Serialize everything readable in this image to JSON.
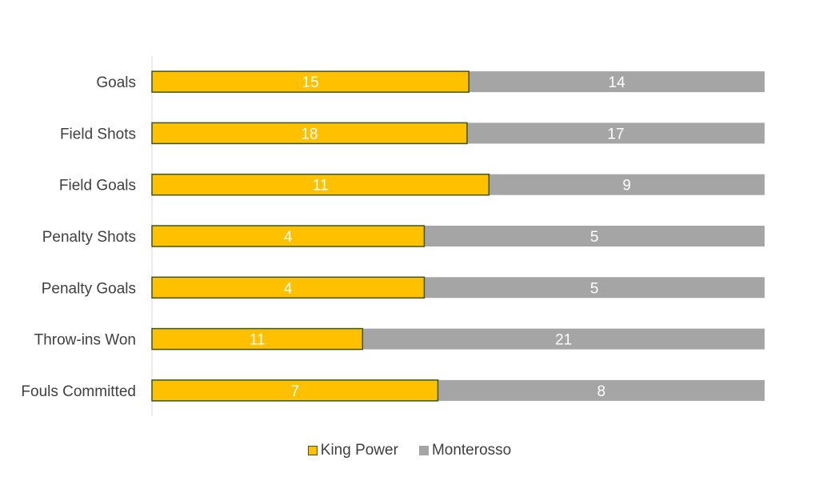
{
  "chart_data": {
    "type": "bar",
    "orientation": "horizontal",
    "stacking": "percent",
    "categories": [
      "Goals",
      "Field Shots",
      "Field Goals",
      "Penalty Shots",
      "Penalty Goals",
      "Throw-ins Won",
      "Fouls Committed"
    ],
    "series": [
      {
        "name": "King Power",
        "values": [
          15,
          18,
          11,
          4,
          4,
          11,
          7
        ],
        "color": "#FFC000",
        "border": "#385723"
      },
      {
        "name": "Monterosso",
        "values": [
          14,
          17,
          9,
          5,
          5,
          21,
          8
        ],
        "color": "#A5A5A5"
      }
    ],
    "legend_position": "bottom",
    "grid": false
  }
}
